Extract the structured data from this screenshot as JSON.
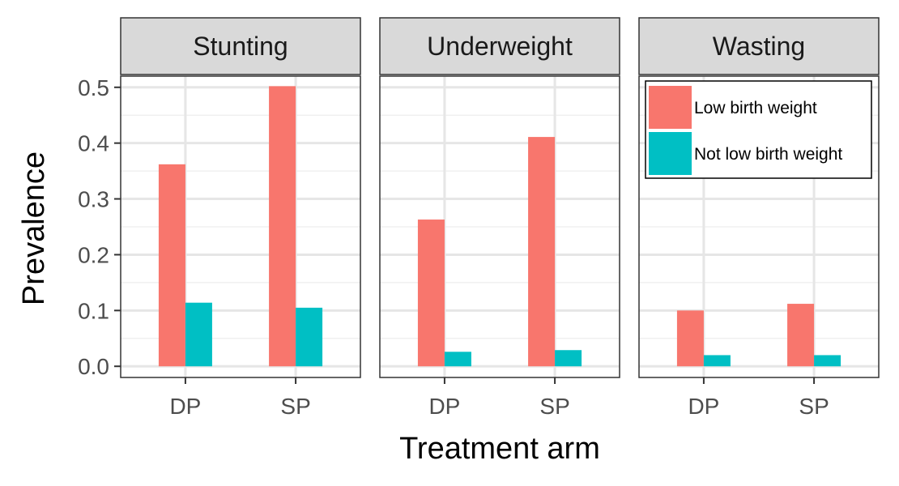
{
  "chart_data": {
    "type": "bar",
    "xlabel": "Treatment arm",
    "ylabel": "Prevalence",
    "ylim": [
      -0.02,
      0.52
    ],
    "yticks": [
      0.0,
      0.1,
      0.2,
      0.3,
      0.4,
      0.5
    ],
    "ytick_labels": [
      "0.0",
      "0.1",
      "0.2",
      "0.3",
      "0.4",
      "0.5"
    ],
    "categories": [
      "DP",
      "SP"
    ],
    "grid": true,
    "legend_placement": "inside top-right of last panel",
    "series_meta": [
      {
        "name": "Low birth weight",
        "color": "#F8766D"
      },
      {
        "name": "Not low birth weight",
        "color": "#00BFC4"
      }
    ],
    "facets": [
      {
        "title": "Stunting",
        "series": [
          {
            "name": "Low birth weight",
            "values": [
              0.362,
              0.502
            ]
          },
          {
            "name": "Not low birth weight",
            "values": [
              0.114,
              0.105
            ]
          }
        ]
      },
      {
        "title": "Underweight",
        "series": [
          {
            "name": "Low birth weight",
            "values": [
              0.263,
              0.411
            ]
          },
          {
            "name": "Not low birth weight",
            "values": [
              0.026,
              0.029
            ]
          }
        ]
      },
      {
        "title": "Wasting",
        "series": [
          {
            "name": "Low birth weight",
            "values": [
              0.1,
              0.112
            ]
          },
          {
            "name": "Not low birth weight",
            "values": [
              0.02,
              0.02
            ]
          }
        ]
      }
    ]
  }
}
